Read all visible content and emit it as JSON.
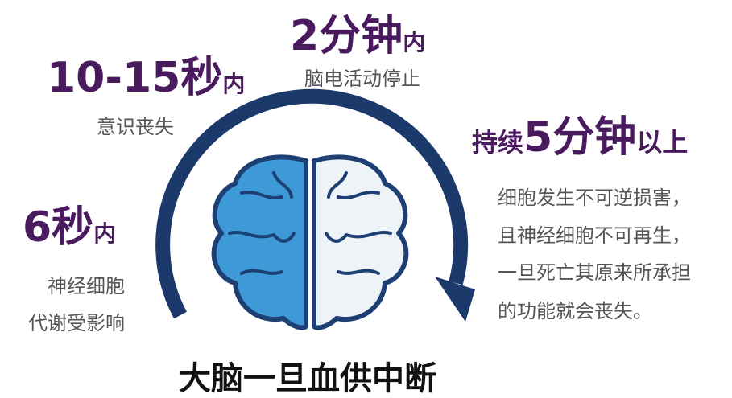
{
  "title": "大脑一旦血供中断",
  "stages": [
    {
      "time": "6秒",
      "suffix": "内",
      "desc": [
        "神经细胞",
        "代谢受影响"
      ]
    },
    {
      "time": "10-15秒",
      "suffix": "内",
      "desc": [
        "意识丧失"
      ]
    },
    {
      "time": "2分钟",
      "suffix": "内",
      "desc": [
        "脑电活动停止"
      ]
    },
    {
      "prefix": "持续",
      "time": "5分钟",
      "suffix": "以上",
      "desc": [
        "细胞发生不可逆损害，",
        "且神经细胞不可再生，",
        "一旦死亡其原来所承担",
        "的功能就会丧失。"
      ]
    }
  ]
}
